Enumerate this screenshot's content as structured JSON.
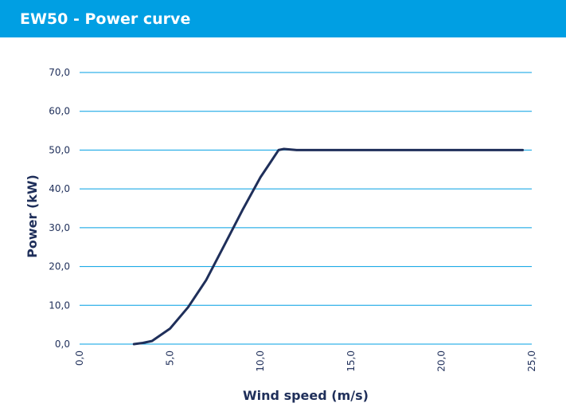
{
  "header": {
    "title": "EW50 - Power curve"
  },
  "colors": {
    "header_background": "#009fe3",
    "header_text": "#ffffff",
    "grid_line": "#009fe3",
    "series_line": "#1f2f5a",
    "axis_text": "#1f2f5a"
  },
  "chart_data": {
    "type": "line",
    "title": "EW50 - Power curve",
    "xlabel": "Wind speed (m/s)",
    "ylabel": "Power (kW)",
    "xlim": [
      0,
      25
    ],
    "ylim": [
      0,
      70
    ],
    "x_ticks": [
      "0,0",
      "5,0",
      "10,0",
      "15,0",
      "20,0",
      "25,0"
    ],
    "y_ticks": [
      "0,0",
      "10,0",
      "20,0",
      "30,0",
      "40,0",
      "50,0",
      "60,0",
      "70,0"
    ],
    "grid": "horizontal",
    "legend": "none",
    "series": [
      {
        "x": [
          3,
          3.5,
          4,
          5,
          6,
          7,
          8,
          9,
          10,
          10.5,
          11,
          11.3,
          12,
          13,
          14,
          15,
          16,
          17,
          18,
          19,
          20,
          21,
          22,
          23,
          24,
          24.5
        ],
        "y": [
          0,
          0.3,
          0.8,
          4,
          9.5,
          16.5,
          25.5,
          34.5,
          43,
          46.5,
          50,
          50.3,
          50,
          50,
          50,
          50,
          50,
          50,
          50,
          50,
          50,
          50,
          50,
          50,
          50,
          50
        ]
      }
    ]
  }
}
